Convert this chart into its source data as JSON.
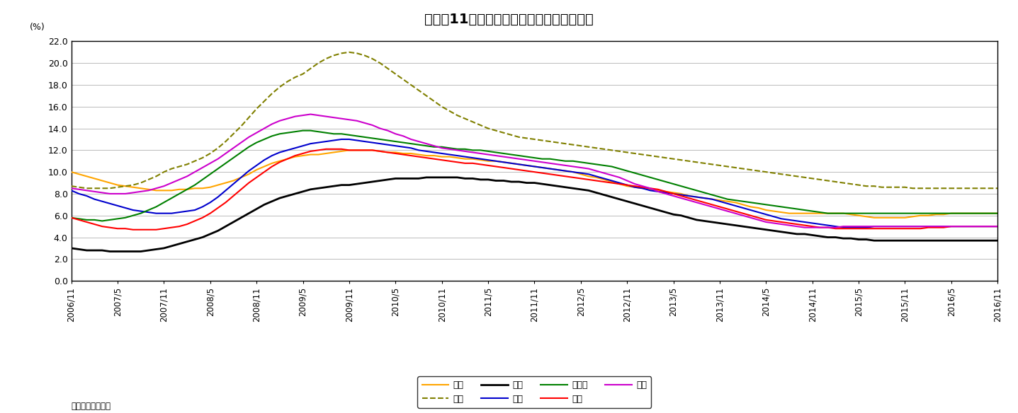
{
  "title": "図表－11　主要都市のオフィスビル空室率",
  "ylabel": "(%)",
  "source": "（出所）三鬼商事",
  "ylim": [
    0.0,
    22.0
  ],
  "yticks": [
    0.0,
    2.0,
    4.0,
    6.0,
    8.0,
    10.0,
    12.0,
    14.0,
    16.0,
    18.0,
    20.0,
    22.0
  ],
  "background_color": "#ffffff",
  "plot_bg_color": "#ffffff",
  "x_tick_labels": [
    "2006/11",
    "2007/5",
    "2007/11",
    "2008/5",
    "2008/11",
    "2009/5",
    "2009/11",
    "2010/5",
    "2010/11",
    "2011/5",
    "2011/11",
    "2012/5",
    "2012/11",
    "2013/5",
    "2013/11",
    "2014/5",
    "2014/11",
    "2015/5",
    "2015/11",
    "2016/5",
    "2016/11"
  ],
  "x_tick_positions": [
    0,
    6,
    12,
    18,
    24,
    30,
    36,
    42,
    48,
    54,
    60,
    66,
    72,
    78,
    84,
    90,
    96,
    102,
    108,
    114,
    120
  ],
  "n_months": 121,
  "series": {
    "札幌": {
      "color": "#FFA500",
      "linestyle": "-",
      "linewidth": 1.5,
      "values": [
        10.0,
        9.8,
        9.6,
        9.4,
        9.2,
        9.0,
        8.8,
        8.7,
        8.6,
        8.5,
        8.4,
        8.3,
        8.3,
        8.3,
        8.4,
        8.4,
        8.5,
        8.5,
        8.6,
        8.8,
        9.0,
        9.2,
        9.5,
        9.8,
        10.2,
        10.5,
        10.8,
        11.0,
        11.2,
        11.4,
        11.5,
        11.6,
        11.6,
        11.7,
        11.8,
        11.9,
        12.0,
        12.0,
        12.0,
        12.0,
        11.9,
        11.8,
        11.8,
        11.7,
        11.7,
        11.6,
        11.5,
        11.5,
        11.4,
        11.4,
        11.3,
        11.2,
        11.2,
        11.1,
        11.0,
        11.0,
        10.9,
        10.8,
        10.7,
        10.6,
        10.5,
        10.4,
        10.3,
        10.2,
        10.1,
        10.0,
        9.8,
        9.6,
        9.5,
        9.3,
        9.1,
        8.9,
        8.7,
        8.6,
        8.5,
        8.4,
        8.3,
        8.2,
        8.1,
        8.0,
        7.8,
        7.7,
        7.6,
        7.5,
        7.4,
        7.3,
        7.2,
        7.0,
        6.8,
        6.7,
        6.5,
        6.4,
        6.3,
        6.2,
        6.2,
        6.2,
        6.2,
        6.2,
        6.2,
        6.2,
        6.2,
        6.1,
        6.0,
        5.9,
        5.8,
        5.8,
        5.8,
        5.8,
        5.8,
        5.9,
        6.0,
        6.0,
        6.1,
        6.1,
        6.2,
        6.2,
        6.2,
        6.2,
        6.2,
        6.2,
        6.2
      ]
    },
    "仙台": {
      "color": "#808000",
      "linestyle": "--",
      "linewidth": 1.5,
      "values": [
        8.7,
        8.6,
        8.5,
        8.5,
        8.5,
        8.5,
        8.6,
        8.7,
        8.8,
        9.0,
        9.3,
        9.6,
        10.0,
        10.3,
        10.5,
        10.7,
        11.0,
        11.3,
        11.7,
        12.2,
        12.8,
        13.5,
        14.2,
        15.0,
        15.8,
        16.5,
        17.2,
        17.8,
        18.3,
        18.7,
        19.0,
        19.5,
        20.0,
        20.4,
        20.7,
        20.9,
        21.0,
        20.9,
        20.7,
        20.4,
        20.0,
        19.5,
        19.0,
        18.5,
        18.0,
        17.5,
        17.0,
        16.5,
        16.0,
        15.6,
        15.2,
        14.9,
        14.6,
        14.3,
        14.0,
        13.8,
        13.6,
        13.4,
        13.2,
        13.1,
        13.0,
        12.9,
        12.8,
        12.7,
        12.6,
        12.5,
        12.4,
        12.3,
        12.2,
        12.1,
        12.0,
        11.9,
        11.8,
        11.7,
        11.6,
        11.5,
        11.4,
        11.3,
        11.2,
        11.1,
        11.0,
        10.9,
        10.8,
        10.7,
        10.6,
        10.5,
        10.4,
        10.3,
        10.2,
        10.1,
        10.0,
        9.9,
        9.8,
        9.7,
        9.6,
        9.5,
        9.4,
        9.3,
        9.2,
        9.1,
        9.0,
        8.9,
        8.8,
        8.7,
        8.7,
        8.6,
        8.6,
        8.6,
        8.6,
        8.5,
        8.5,
        8.5,
        8.5,
        8.5,
        8.5,
        8.5,
        8.5,
        8.5,
        8.5,
        8.5,
        8.5
      ]
    },
    "東京": {
      "color": "#000000",
      "linestyle": "-",
      "linewidth": 2.0,
      "values": [
        3.0,
        2.9,
        2.8,
        2.8,
        2.8,
        2.7,
        2.7,
        2.7,
        2.7,
        2.7,
        2.8,
        2.9,
        3.0,
        3.2,
        3.4,
        3.6,
        3.8,
        4.0,
        4.3,
        4.6,
        5.0,
        5.4,
        5.8,
        6.2,
        6.6,
        7.0,
        7.3,
        7.6,
        7.8,
        8.0,
        8.2,
        8.4,
        8.5,
        8.6,
        8.7,
        8.8,
        8.8,
        8.9,
        9.0,
        9.1,
        9.2,
        9.3,
        9.4,
        9.4,
        9.4,
        9.4,
        9.5,
        9.5,
        9.5,
        9.5,
        9.5,
        9.4,
        9.4,
        9.3,
        9.3,
        9.2,
        9.2,
        9.1,
        9.1,
        9.0,
        9.0,
        8.9,
        8.8,
        8.7,
        8.6,
        8.5,
        8.4,
        8.3,
        8.1,
        7.9,
        7.7,
        7.5,
        7.3,
        7.1,
        6.9,
        6.7,
        6.5,
        6.3,
        6.1,
        6.0,
        5.8,
        5.6,
        5.5,
        5.4,
        5.3,
        5.2,
        5.1,
        5.0,
        4.9,
        4.8,
        4.7,
        4.6,
        4.5,
        4.4,
        4.3,
        4.3,
        4.2,
        4.1,
        4.0,
        4.0,
        3.9,
        3.9,
        3.8,
        3.8,
        3.7,
        3.7,
        3.7,
        3.7,
        3.7,
        3.7,
        3.7,
        3.7,
        3.7,
        3.7,
        3.7,
        3.7,
        3.7,
        3.7,
        3.7,
        3.7,
        3.7
      ]
    },
    "横浜": {
      "color": "#0000CD",
      "linestyle": "-",
      "linewidth": 1.5,
      "values": [
        8.3,
        8.0,
        7.8,
        7.5,
        7.3,
        7.1,
        6.9,
        6.7,
        6.5,
        6.4,
        6.3,
        6.2,
        6.2,
        6.2,
        6.3,
        6.4,
        6.5,
        6.8,
        7.2,
        7.7,
        8.3,
        8.9,
        9.5,
        10.1,
        10.6,
        11.1,
        11.5,
        11.8,
        12.0,
        12.2,
        12.4,
        12.6,
        12.7,
        12.8,
        12.9,
        13.0,
        13.0,
        12.9,
        12.8,
        12.7,
        12.6,
        12.5,
        12.4,
        12.3,
        12.2,
        12.0,
        11.9,
        11.8,
        11.7,
        11.6,
        11.5,
        11.4,
        11.3,
        11.2,
        11.1,
        11.0,
        10.9,
        10.8,
        10.7,
        10.6,
        10.5,
        10.4,
        10.3,
        10.2,
        10.1,
        10.0,
        9.9,
        9.8,
        9.6,
        9.4,
        9.2,
        9.0,
        8.8,
        8.6,
        8.5,
        8.3,
        8.2,
        8.1,
        8.0,
        7.9,
        7.8,
        7.7,
        7.6,
        7.5,
        7.3,
        7.1,
        6.9,
        6.7,
        6.5,
        6.3,
        6.1,
        5.9,
        5.7,
        5.6,
        5.5,
        5.4,
        5.3,
        5.2,
        5.1,
        5.0,
        4.9,
        4.9,
        4.9,
        4.9,
        5.0,
        5.0,
        5.0,
        5.0,
        5.0,
        5.0,
        5.0,
        5.0,
        5.0,
        5.0,
        5.0,
        5.0,
        5.0,
        5.0,
        5.0,
        5.0,
        5.0
      ]
    },
    "名古屋": {
      "color": "#008000",
      "linestyle": "-",
      "linewidth": 1.5,
      "values": [
        5.8,
        5.7,
        5.6,
        5.6,
        5.5,
        5.6,
        5.7,
        5.8,
        6.0,
        6.2,
        6.5,
        6.8,
        7.2,
        7.6,
        8.0,
        8.4,
        8.8,
        9.3,
        9.8,
        10.3,
        10.8,
        11.3,
        11.8,
        12.3,
        12.7,
        13.0,
        13.3,
        13.5,
        13.6,
        13.7,
        13.8,
        13.8,
        13.7,
        13.6,
        13.5,
        13.5,
        13.4,
        13.3,
        13.2,
        13.1,
        13.0,
        12.9,
        12.8,
        12.7,
        12.6,
        12.5,
        12.4,
        12.3,
        12.3,
        12.2,
        12.1,
        12.1,
        12.0,
        12.0,
        11.9,
        11.8,
        11.7,
        11.6,
        11.5,
        11.4,
        11.3,
        11.2,
        11.2,
        11.1,
        11.0,
        11.0,
        10.9,
        10.8,
        10.7,
        10.6,
        10.5,
        10.3,
        10.1,
        9.9,
        9.7,
        9.5,
        9.3,
        9.1,
        8.9,
        8.7,
        8.5,
        8.3,
        8.1,
        7.9,
        7.7,
        7.5,
        7.4,
        7.3,
        7.2,
        7.1,
        7.0,
        6.9,
        6.8,
        6.7,
        6.6,
        6.5,
        6.4,
        6.3,
        6.2,
        6.2,
        6.2,
        6.2,
        6.2,
        6.2,
        6.2,
        6.2,
        6.2,
        6.2,
        6.2,
        6.2,
        6.2,
        6.2,
        6.2,
        6.2,
        6.2,
        6.2,
        6.2,
        6.2,
        6.2,
        6.2,
        6.2
      ]
    },
    "大阪": {
      "color": "#FF0000",
      "linestyle": "-",
      "linewidth": 1.5,
      "values": [
        5.8,
        5.6,
        5.4,
        5.2,
        5.0,
        4.9,
        4.8,
        4.8,
        4.7,
        4.7,
        4.7,
        4.7,
        4.8,
        4.9,
        5.0,
        5.2,
        5.5,
        5.8,
        6.2,
        6.7,
        7.2,
        7.8,
        8.4,
        9.0,
        9.5,
        10.0,
        10.5,
        10.9,
        11.2,
        11.5,
        11.7,
        11.9,
        12.0,
        12.1,
        12.1,
        12.1,
        12.0,
        12.0,
        12.0,
        12.0,
        11.9,
        11.8,
        11.7,
        11.6,
        11.5,
        11.4,
        11.3,
        11.2,
        11.1,
        11.0,
        10.9,
        10.8,
        10.8,
        10.7,
        10.6,
        10.5,
        10.4,
        10.3,
        10.2,
        10.1,
        10.0,
        9.9,
        9.8,
        9.7,
        9.6,
        9.5,
        9.4,
        9.3,
        9.2,
        9.1,
        9.0,
        8.9,
        8.8,
        8.7,
        8.6,
        8.5,
        8.4,
        8.2,
        8.0,
        7.8,
        7.6,
        7.4,
        7.2,
        7.0,
        6.8,
        6.6,
        6.4,
        6.2,
        6.0,
        5.8,
        5.6,
        5.5,
        5.4,
        5.3,
        5.2,
        5.1,
        5.0,
        4.9,
        4.9,
        4.8,
        4.8,
        4.8,
        4.8,
        4.8,
        4.8,
        4.8,
        4.8,
        4.8,
        4.8,
        4.8,
        4.8,
        4.9,
        4.9,
        4.9,
        5.0,
        5.0,
        5.0,
        5.0,
        5.0,
        5.0,
        5.0
      ]
    },
    "福岡": {
      "color": "#CC00CC",
      "linestyle": "-",
      "linewidth": 1.5,
      "values": [
        8.5,
        8.4,
        8.3,
        8.2,
        8.1,
        8.0,
        8.0,
        8.0,
        8.1,
        8.2,
        8.3,
        8.5,
        8.7,
        9.0,
        9.3,
        9.6,
        10.0,
        10.4,
        10.8,
        11.2,
        11.7,
        12.2,
        12.7,
        13.2,
        13.6,
        14.0,
        14.4,
        14.7,
        14.9,
        15.1,
        15.2,
        15.3,
        15.2,
        15.1,
        15.0,
        14.9,
        14.8,
        14.7,
        14.5,
        14.3,
        14.0,
        13.8,
        13.5,
        13.3,
        13.0,
        12.8,
        12.6,
        12.4,
        12.2,
        12.1,
        12.0,
        11.9,
        11.8,
        11.7,
        11.6,
        11.5,
        11.4,
        11.3,
        11.2,
        11.1,
        11.0,
        10.9,
        10.8,
        10.7,
        10.6,
        10.5,
        10.4,
        10.3,
        10.1,
        9.9,
        9.7,
        9.5,
        9.2,
        8.9,
        8.7,
        8.5,
        8.2,
        8.0,
        7.8,
        7.6,
        7.4,
        7.2,
        7.0,
        6.8,
        6.6,
        6.4,
        6.2,
        6.0,
        5.8,
        5.6,
        5.4,
        5.3,
        5.2,
        5.1,
        5.0,
        4.9,
        4.9,
        4.9,
        4.9,
        4.9,
        5.0,
        5.0,
        5.0,
        5.0,
        5.0,
        5.0,
        5.0,
        5.0,
        5.0,
        5.0,
        5.0,
        5.0,
        5.0,
        5.0,
        5.0,
        5.0,
        5.0,
        5.0,
        5.0,
        5.0,
        5.0
      ]
    }
  },
  "legend_order": [
    "札幌",
    "仙台",
    "東京",
    "横浜",
    "名古屋",
    "大阪",
    "福岡"
  ],
  "legend_ncol_row1": 4,
  "legend_ncol_row2": 3
}
